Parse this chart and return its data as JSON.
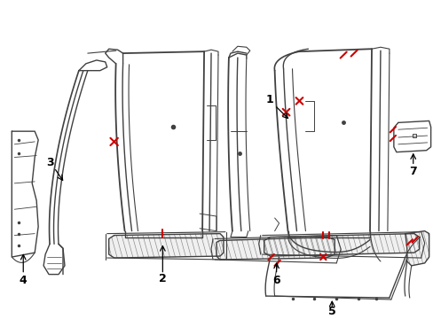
{
  "bg_color": "#ffffff",
  "line_color": "#404040",
  "red_color": "#cc0000",
  "label_color": "#000000",
  "fig_width": 4.89,
  "fig_height": 3.6,
  "dpi": 100,
  "xlim": [
    0,
    489
  ],
  "ylim": [
    0,
    360
  ]
}
